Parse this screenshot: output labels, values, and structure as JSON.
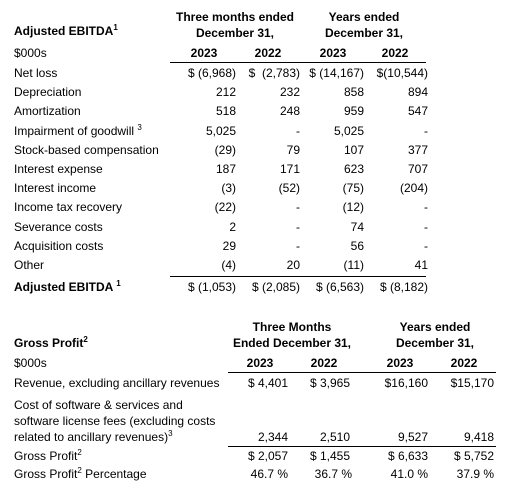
{
  "ebitda": {
    "title": "Adjusted EBITDA",
    "title_note": "1",
    "period_headers": [
      {
        "line1": "Three months ended",
        "line2": "December 31,"
      },
      {
        "line1": "Years ended",
        "line2": "December 31,"
      }
    ],
    "unit_label": "$000s",
    "years": [
      "2023",
      "2022",
      "2023",
      "2022"
    ],
    "rows": [
      {
        "label": "Net loss",
        "note": "",
        "values": [
          "$ (6,968)",
          "$  (2,783)",
          "$ (14,167)",
          "$(10,544)"
        ]
      },
      {
        "label": "Depreciation",
        "note": "",
        "values": [
          "212",
          "232",
          "858",
          "894"
        ]
      },
      {
        "label": "Amortization",
        "note": "",
        "values": [
          "518",
          "248",
          "959",
          "547"
        ]
      },
      {
        "label": "Impairment of goodwill",
        "note": "3",
        "values": [
          "5,025",
          "-",
          "5,025",
          "-"
        ]
      },
      {
        "label": "Stock-based compensation",
        "note": "",
        "values": [
          "(29)",
          "79",
          "107",
          "377"
        ]
      },
      {
        "label": "Interest expense",
        "note": "",
        "values": [
          "187",
          "171",
          "623",
          "707"
        ]
      },
      {
        "label": "Interest income",
        "note": "",
        "values": [
          "(3)",
          "(52)",
          "(75)",
          "(204)"
        ]
      },
      {
        "label": "Income tax recovery",
        "note": "",
        "values": [
          "(22)",
          "-",
          "(12)",
          "-"
        ]
      },
      {
        "label": "Severance costs",
        "note": "",
        "values": [
          "2",
          "-",
          "74",
          "-"
        ]
      },
      {
        "label": "Acquisition costs",
        "note": "",
        "values": [
          "29",
          "-",
          "56",
          "-"
        ]
      },
      {
        "label": "Other",
        "note": "",
        "values": [
          "(4)",
          "20",
          "(11)",
          "41"
        ]
      }
    ],
    "total": {
      "label": "Adjusted EBITDA",
      "note": "1",
      "values": [
        "$ (1,053)",
        "$  (2,085)",
        "$  (6,563)",
        "$  (8,182)"
      ]
    }
  },
  "gross": {
    "title": "Gross Profit",
    "title_note": "2",
    "period_headers": [
      {
        "line1": "Three Months",
        "line2": "Ended December 31,"
      },
      {
        "line1": "Years ended",
        "line2": "December 31,"
      }
    ],
    "unit_label": "$000s",
    "years": [
      "2023",
      "2022",
      "2023",
      "2022"
    ],
    "revenue": {
      "label": "Revenue, excluding ancillary revenues",
      "values": [
        "$ 4,401",
        "$ 3,965",
        "$16,160",
        "$15,170"
      ]
    },
    "cost": {
      "line1": "Cost of software & services and",
      "line2": "software license fees (excluding costs",
      "line3": "related to ancillary revenues)",
      "note": "3",
      "values": [
        "2,344",
        "2,510",
        "9,527",
        "9,418"
      ]
    },
    "profit": {
      "label": "Gross Profit",
      "note": "2",
      "values": [
        "$ 2,057",
        "$ 1,455",
        "$ 6,633",
        "$ 5,752"
      ]
    },
    "percentage": {
      "label": "Gross Profit",
      "note": "2",
      "suffix": " Percentage",
      "values": [
        "46.7 %",
        "36.7 %",
        "41.0 %",
        "37.9 %"
      ]
    }
  }
}
